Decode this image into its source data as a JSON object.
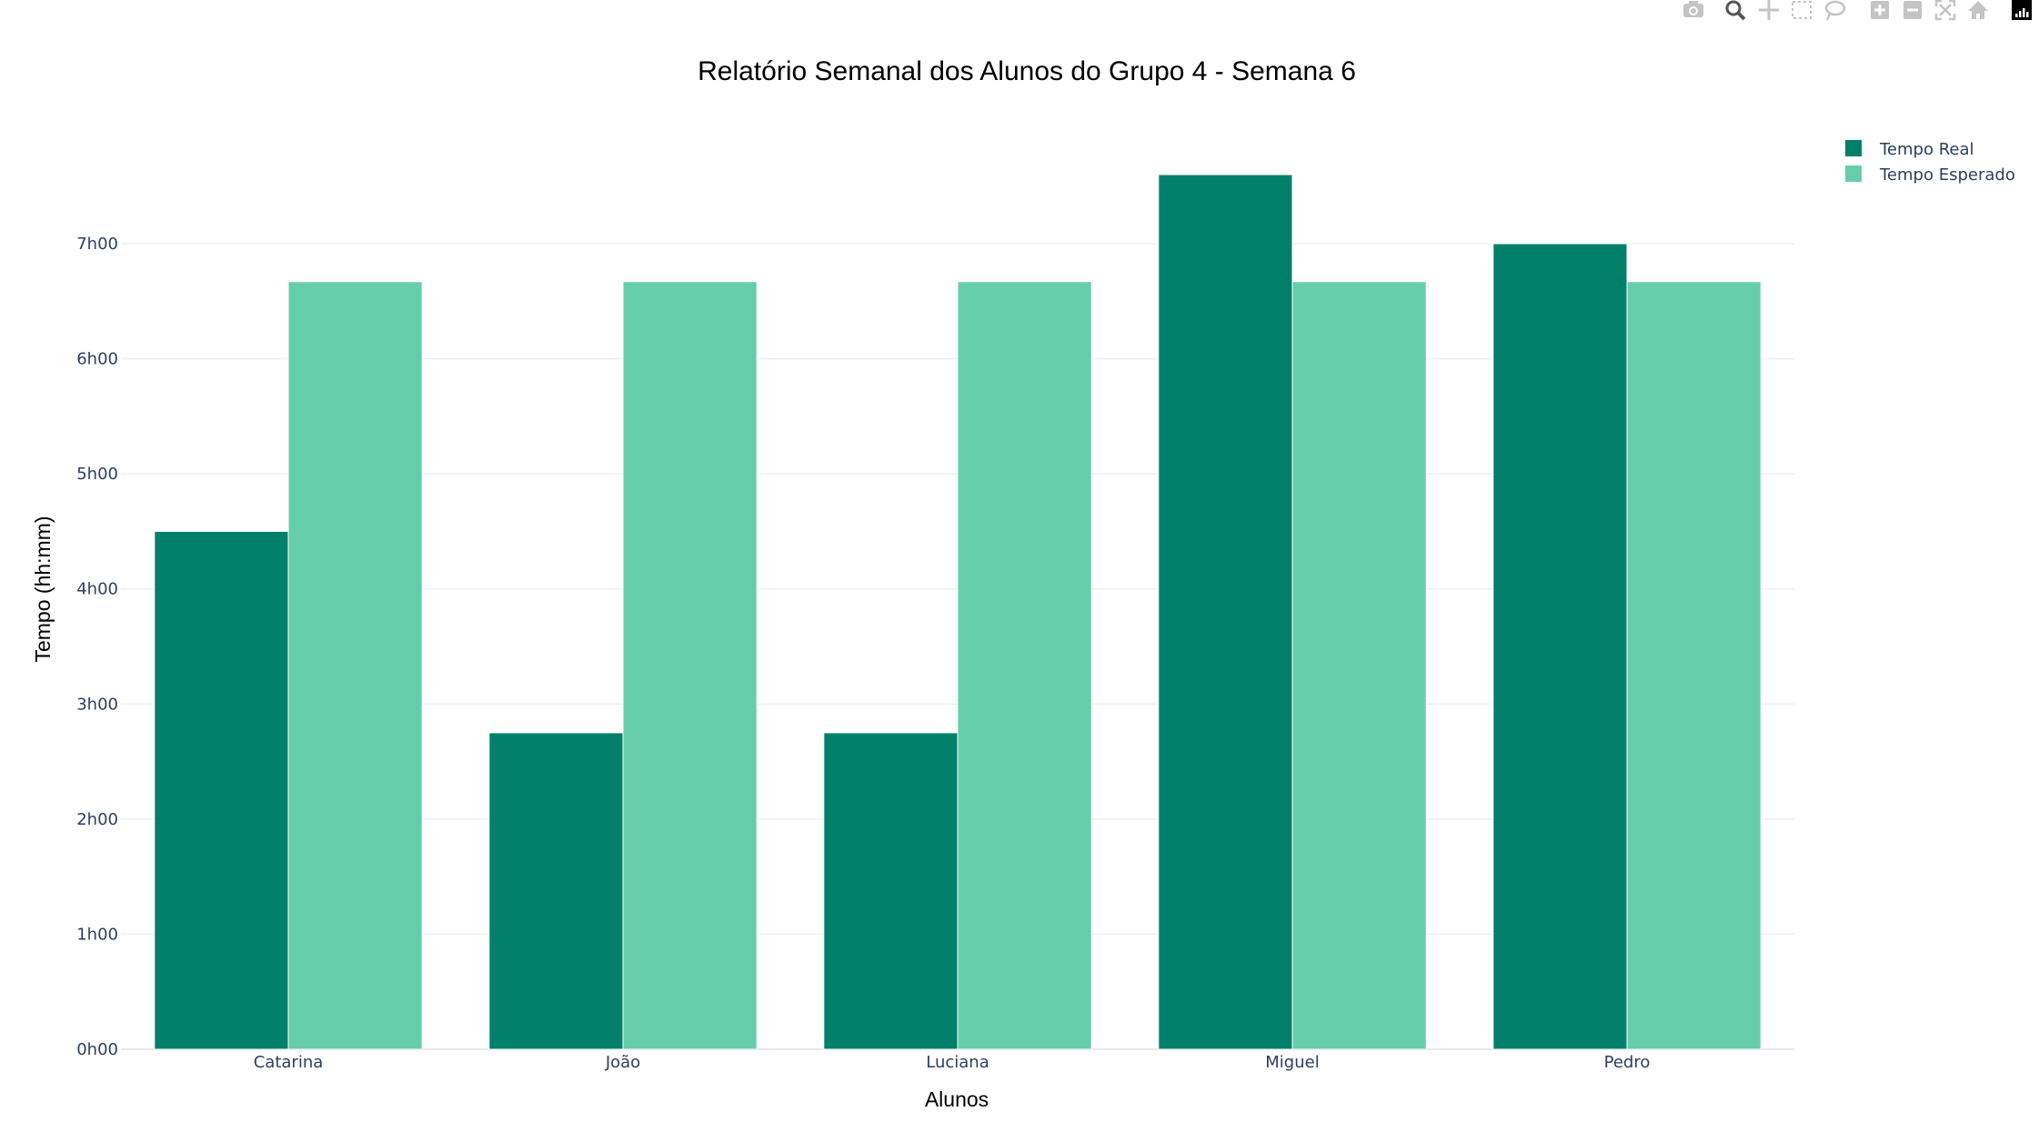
{
  "toolbar": {
    "buttons": [
      {
        "name": "camera-icon",
        "label": "Download plot as a png",
        "active": false
      },
      {
        "name": "zoom-icon",
        "label": "Zoom",
        "active": true
      },
      {
        "name": "pan-icon",
        "label": "Pan",
        "active": false
      },
      {
        "name": "box-select-icon",
        "label": "Box Select",
        "active": false
      },
      {
        "name": "lasso-select-icon",
        "label": "Lasso Select",
        "active": false
      },
      {
        "name": "zoom-in-icon",
        "label": "Zoom in",
        "active": false
      },
      {
        "name": "zoom-out-icon",
        "label": "Zoom out",
        "active": false
      },
      {
        "name": "autoscale-icon",
        "label": "Autoscale",
        "active": false
      },
      {
        "name": "reset-axes-icon",
        "label": "Reset axes",
        "active": false
      },
      {
        "name": "plotly-logo-icon",
        "label": "Produced with Plotly",
        "active": false
      }
    ]
  },
  "chart_data": {
    "type": "bar",
    "title": "Relatório Semanal dos Alunos do Grupo 4 - Semana 6",
    "xlabel": "Alunos",
    "ylabel": "Tempo (hh:mm)",
    "categories": [
      "Catarina",
      "João",
      "Luciana",
      "Miguel",
      "Pedro"
    ],
    "series": [
      {
        "name": "Tempo Real",
        "color": "#00806a",
        "values": [
          4.5,
          2.75,
          2.75,
          7.6,
          7.0
        ]
      },
      {
        "name": "Tempo Esperado",
        "color": "#66cdaa",
        "values": [
          6.67,
          6.67,
          6.67,
          6.67,
          6.67
        ]
      }
    ],
    "yticks": [
      {
        "value": 0,
        "label": "0h00"
      },
      {
        "value": 1,
        "label": "1h00"
      },
      {
        "value": 2,
        "label": "2h00"
      },
      {
        "value": 3,
        "label": "3h00"
      },
      {
        "value": 4,
        "label": "4h00"
      },
      {
        "value": 5,
        "label": "5h00"
      },
      {
        "value": 6,
        "label": "6h00"
      },
      {
        "value": 7,
        "label": "7h00"
      }
    ],
    "ylim": [
      0,
      8
    ],
    "grid": true,
    "legend_position": "top-right"
  }
}
